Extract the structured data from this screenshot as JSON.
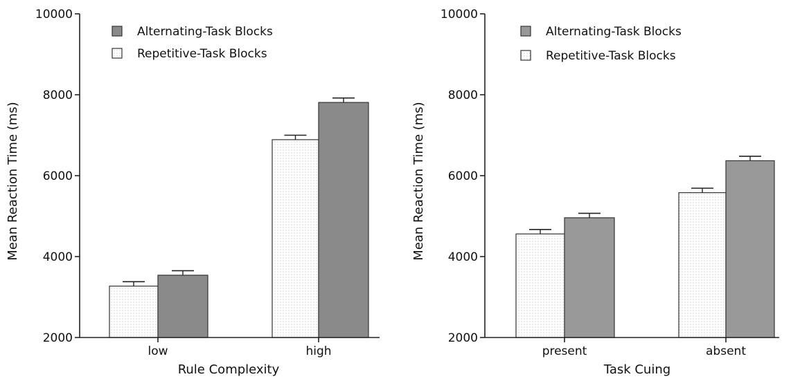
{
  "chart_data": [
    {
      "type": "bar",
      "title": "",
      "xlabel": "Rule  Complexity",
      "ylabel": "Mean Reaction Time (ms)",
      "ylim": [
        2000,
        10000
      ],
      "yticks": [
        "2000",
        "4000",
        "6000",
        "8000",
        "10000"
      ],
      "categories": [
        "low",
        "high"
      ],
      "legend_position": "top-left",
      "series": [
        {
          "name": "Alternating-Task  Blocks",
          "values": [
            3540,
            7810
          ],
          "errors": [
            110,
            110
          ],
          "fill": "#8a8a8a",
          "pattern": "solid"
        },
        {
          "name": "Repetitive-Task  Blocks",
          "values": [
            3270,
            6890
          ],
          "errors": [
            110,
            110
          ],
          "fill": "#ffffff",
          "pattern": "dotted"
        }
      ],
      "bar_order": [
        1,
        0
      ],
      "grid": false
    },
    {
      "type": "bar",
      "title": "",
      "xlabel": "Task  Cuing",
      "ylabel": "Mean Reaction Time (ms)",
      "ylim": [
        2000,
        10000
      ],
      "yticks": [
        "2000",
        "4000",
        "6000",
        "8000",
        "10000"
      ],
      "categories": [
        "present",
        "absent"
      ],
      "legend_position": "top-left",
      "series": [
        {
          "name": "Alternating-Task  Blocks",
          "values": [
            4960,
            6370
          ],
          "errors": [
            110,
            110
          ],
          "fill": "#999999",
          "pattern": "solid"
        },
        {
          "name": "Repetitive-Task  Blocks",
          "values": [
            4560,
            5580
          ],
          "errors": [
            110,
            110
          ],
          "fill": "#ffffff",
          "pattern": "dotted"
        }
      ],
      "bar_order": [
        1,
        0
      ],
      "grid": false
    }
  ]
}
